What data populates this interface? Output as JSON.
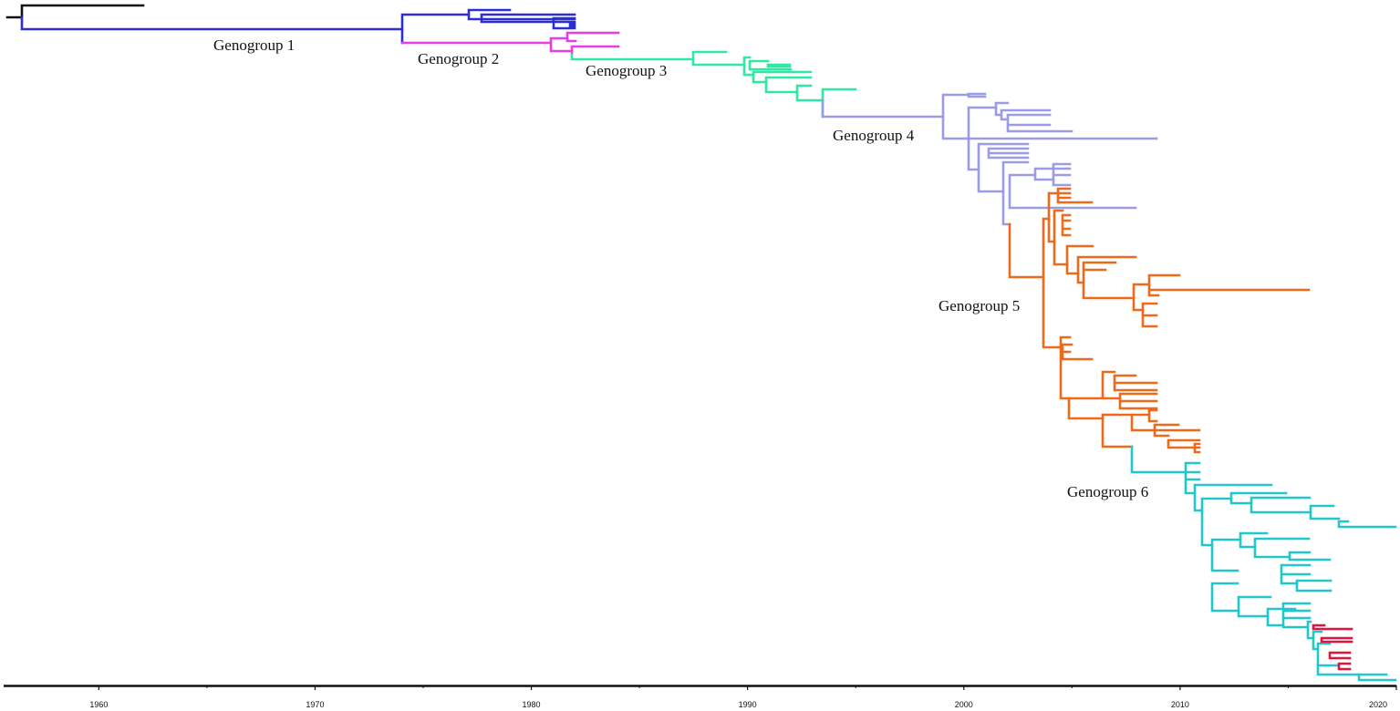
{
  "figure": {
    "type": "time-scaled-phylogenetic-tree",
    "axis": {
      "min": 1955.6,
      "max": 2020.0,
      "ticks": [
        1960,
        1970,
        1980,
        1990,
        2000,
        2010,
        2020
      ],
      "tick_labels": [
        "1960",
        "1970",
        "1980",
        "1990",
        "2000",
        "2010",
        "2020"
      ]
    },
    "clades": [
      {
        "id": "g1",
        "label": "Genogroup 1",
        "color": "#2b2fd3"
      },
      {
        "id": "g2",
        "label": "Genogroup 2",
        "color": "#e43ee4"
      },
      {
        "id": "g3",
        "label": "Genogroup 3",
        "color": "#2fe8a4"
      },
      {
        "id": "g4",
        "label": "Genogroup 4",
        "color": "#9b9be6"
      },
      {
        "id": "g5",
        "label": "Genogroup 5",
        "color": "#ee6a1a"
      },
      {
        "id": "g6",
        "label": "Genogroup 6",
        "color": "#20c8cc"
      },
      {
        "id": "sub",
        "label": "",
        "color": "#e0143c"
      },
      {
        "id": "root",
        "label": "",
        "color": "#111111"
      }
    ]
  }
}
